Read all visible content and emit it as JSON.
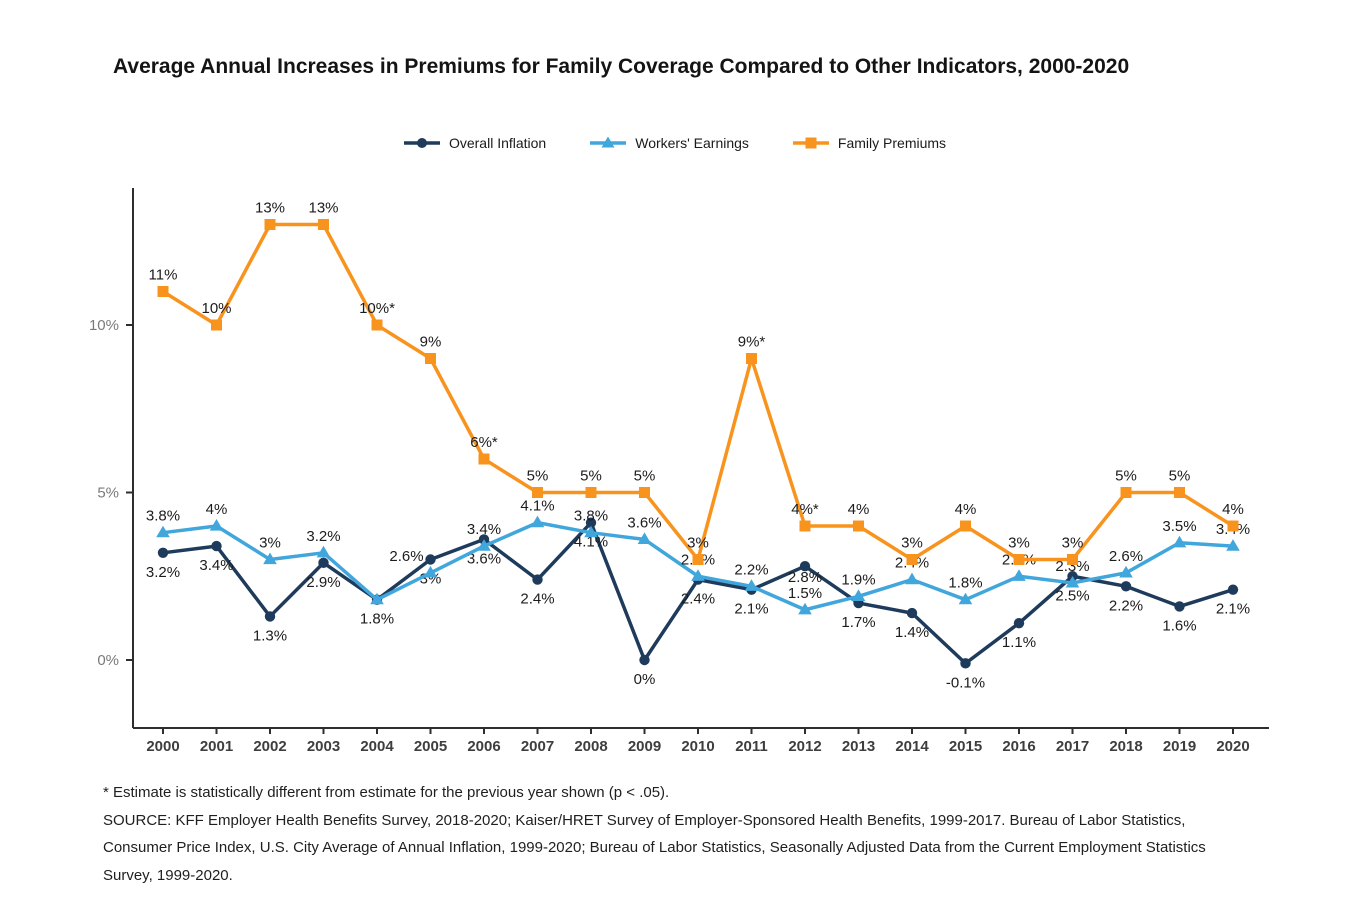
{
  "chart_data": {
    "type": "line",
    "title": "Average Annual Increases in Premiums for Family Coverage Compared to Other Indicators, 2000-2020",
    "categories": [
      "2000",
      "2001",
      "2002",
      "2003",
      "2004",
      "2005",
      "2006",
      "2007",
      "2008",
      "2009",
      "2010",
      "2011",
      "2012",
      "2013",
      "2014",
      "2015",
      "2016",
      "2017",
      "2018",
      "2019",
      "2020"
    ],
    "y_axis": {
      "tick_values": [
        0,
        5,
        10
      ],
      "tick_labels": [
        "0%",
        "5%",
        "10%"
      ],
      "ylim": [
        -2.1,
        14.1
      ]
    },
    "grid": "off",
    "legend_position": "top-center",
    "series": [
      {
        "name": "Overall Inflation",
        "color": "#1F3B5C",
        "marker": "circle",
        "label_position": "below",
        "values": [
          3.2,
          3.4,
          1.3,
          2.9,
          1.8,
          3,
          3.6,
          2.4,
          4.1,
          0,
          2.4,
          2.1,
          2.8,
          1.7,
          1.4,
          -0.1,
          1.1,
          2.5,
          2.2,
          1.6,
          2.1
        ],
        "labels": [
          "3.2%",
          "3.4%",
          "1.3%",
          "2.9%",
          "1.8%",
          "3%",
          "3.6%",
          "2.4%",
          "4.1%",
          "0%",
          "2.4%",
          "2.1%",
          "2.8%",
          "1.7%",
          "1.4%",
          "-0.1%",
          "1.1%",
          "2.5%",
          "2.2%",
          "1.6%",
          "2.1%"
        ],
        "label_offsets": {
          "12": [
            0,
            -8
          ]
        }
      },
      {
        "name": "Workers' Earnings",
        "color": "#41A6DC",
        "marker": "triangle",
        "label_position": "above",
        "values": [
          3.8,
          4,
          3,
          3.2,
          1.8,
          2.6,
          3.4,
          4.1,
          3.8,
          3.6,
          2.5,
          2.2,
          1.5,
          1.9,
          2.4,
          1.8,
          2.5,
          2.3,
          2.6,
          3.5,
          3.4
        ],
        "labels": [
          "3.8%",
          "4%",
          "3%",
          "3.2%",
          "",
          "2.6%",
          "3.4%",
          "4.1%",
          "3.8%",
          "3.6%",
          "2.5%",
          "2.2%",
          "1.5%",
          "1.9%",
          "2.4%",
          "1.8%",
          "2.5%",
          "2.3%",
          "2.6%",
          "3.5%",
          "3.4%"
        ],
        "label_offsets": {
          "5": [
            -24,
            0
          ]
        }
      },
      {
        "name": "Family Premiums",
        "color": "#F8941E",
        "marker": "square",
        "label_position": "above",
        "values": [
          11,
          10,
          13,
          13,
          10,
          9,
          6,
          5,
          5,
          5,
          3,
          9,
          4,
          4,
          3,
          4,
          3,
          3,
          5,
          5,
          4
        ],
        "labels": [
          "11%",
          "10%",
          "13%",
          "13%",
          "10%*",
          "9%",
          "6%*",
          "5%",
          "5%",
          "5%",
          "3%",
          "9%*",
          "4%*",
          "4%",
          "3%",
          "4%",
          "3%",
          "3%",
          "5%",
          "5%",
          "4%"
        ]
      }
    ]
  },
  "footnotes": {
    "asterisk": "* Estimate is statistically different from estimate for the previous year shown (p < .05).",
    "source": "SOURCE: KFF Employer Health Benefits Survey, 2018-2020; Kaiser/HRET Survey of Employer-Sponsored Health Benefits, 1999-2017. Bureau of Labor Statistics, Consumer Price Index, U.S. City Average of Annual Inflation, 1999-2020; Bureau of Labor Statistics, Seasonally Adjusted Data from the Current Employment Statistics Survey, 1999-2020."
  }
}
